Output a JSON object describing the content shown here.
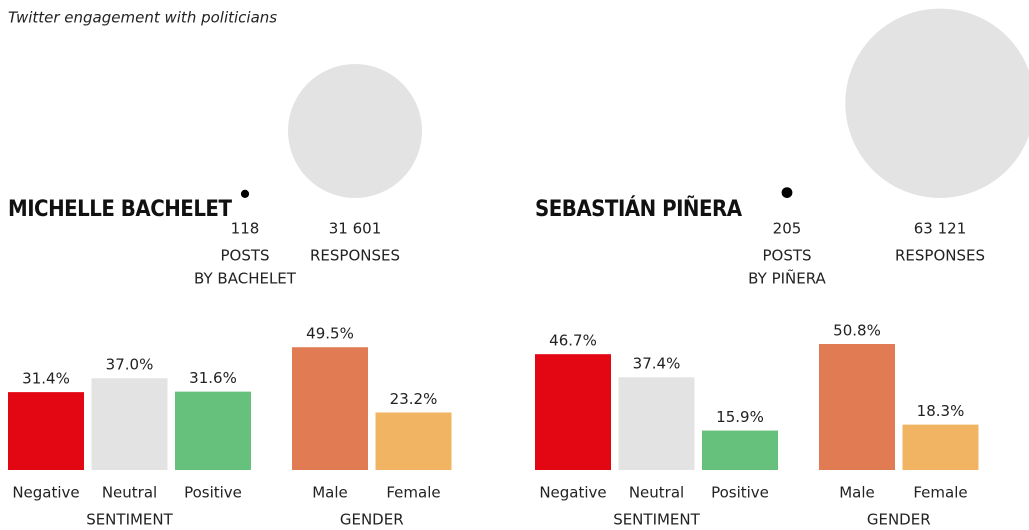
{
  "title": "Twitter engagement with politicians",
  "chart_data": [
    {
      "type": "bubble",
      "title": "MICHELLE BACHELET",
      "categories": [
        "POSTS",
        "RESPONSES"
      ],
      "values": [
        118,
        31601
      ],
      "value_labels": [
        "118",
        "31 601"
      ],
      "annotation": "BY BACHELET",
      "colors": [
        "#000000",
        "#e3e3e3"
      ]
    },
    {
      "type": "bar",
      "xlabel": "SENTIMENT",
      "categories": [
        "Negative",
        "Neutral",
        "Positive"
      ],
      "values": [
        31.4,
        37.0,
        31.6
      ],
      "value_labels": [
        "31.4%",
        "37.0%",
        "31.6%"
      ],
      "colors": [
        "#e30613",
        "#e3e3e3",
        "#66c17c"
      ],
      "ylim": [
        0,
        50
      ]
    },
    {
      "type": "bar",
      "xlabel": "GENDER",
      "categories": [
        "Male",
        "Female"
      ],
      "values": [
        49.5,
        23.2
      ],
      "value_labels": [
        "49.5%",
        "23.2%"
      ],
      "colors": [
        "#e07b54",
        "#f0b462"
      ],
      "ylim": [
        0,
        50
      ]
    },
    {
      "type": "bubble",
      "title": "SEBASTIÁN PIÑERA",
      "categories": [
        "POSTS",
        "RESPONSES"
      ],
      "values": [
        205,
        63121
      ],
      "value_labels": [
        "205",
        "63 121"
      ],
      "annotation": "BY PIÑERA",
      "colors": [
        "#000000",
        "#e3e3e3"
      ]
    },
    {
      "type": "bar",
      "xlabel": "SENTIMENT",
      "categories": [
        "Negative",
        "Neutral",
        "Positive"
      ],
      "values": [
        46.7,
        37.4,
        15.9
      ],
      "value_labels": [
        "46.7%",
        "37.4%",
        "15.9%"
      ],
      "colors": [
        "#e30613",
        "#e3e3e3",
        "#66c17c"
      ],
      "ylim": [
        0,
        50
      ]
    },
    {
      "type": "bar",
      "xlabel": "GENDER",
      "categories": [
        "Male",
        "Female"
      ],
      "values": [
        50.8,
        18.3
      ],
      "value_labels": [
        "50.8%",
        "18.3%"
      ],
      "colors": [
        "#e07b54",
        "#f0b462"
      ],
      "ylim": [
        0,
        50
      ]
    }
  ]
}
